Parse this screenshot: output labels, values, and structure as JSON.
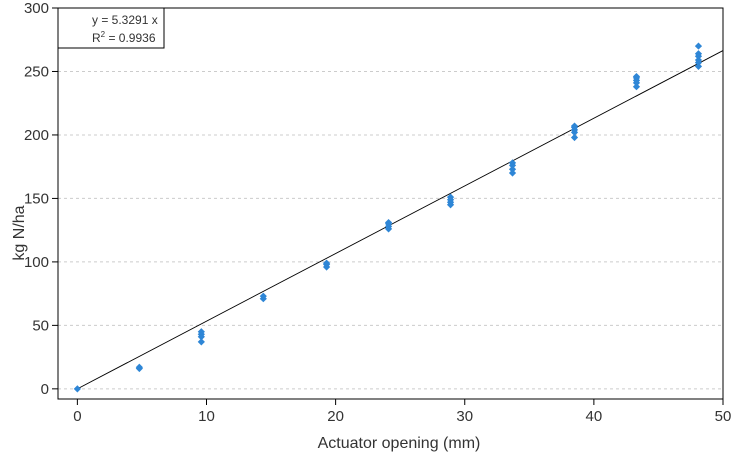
{
  "chart_data": {
    "type": "scatter",
    "title": "",
    "xlabel": "Actuator opening (mm)",
    "ylabel": "kg N/ha",
    "xlim": [
      -1.5,
      50
    ],
    "ylim": [
      -8,
      300
    ],
    "xticks": [
      0,
      10,
      20,
      30,
      40,
      50
    ],
    "yticks": [
      0,
      50,
      100,
      150,
      200,
      250,
      300
    ],
    "grid": "horizontal-dashed",
    "legend": "none",
    "colors": {
      "points": "#2e86d6",
      "trendline": "#000000",
      "grid": "#cccccc",
      "axes": "#000000"
    },
    "series": [
      {
        "x": [
          0,
          4.8,
          4.8,
          9.6,
          9.6,
          9.6,
          9.6,
          14.4,
          14.4,
          19.3,
          19.3,
          19.3,
          24.1,
          24.1,
          24.1,
          24.1,
          28.9,
          28.9,
          28.9,
          28.9,
          33.7,
          33.7,
          33.7,
          33.7,
          38.5,
          38.5,
          38.5,
          38.5,
          38.5,
          43.3,
          43.3,
          43.3,
          43.3,
          43.3,
          48.1,
          48.1,
          48.1,
          48.1,
          48.1,
          48.1
        ],
        "y": [
          0,
          16,
          17,
          37,
          41,
          43,
          45,
          71,
          73,
          96,
          98,
          99,
          126,
          128,
          130,
          131,
          145,
          147,
          149,
          151,
          170,
          173,
          176,
          178,
          198,
          202,
          204,
          206,
          207,
          238,
          241,
          243,
          245,
          246,
          254,
          257,
          259,
          262,
          264,
          270
        ]
      }
    ],
    "trendline": {
      "slope": 5.3291,
      "intercept": 0,
      "x_range": [
        0,
        50
      ]
    },
    "annotation": {
      "equation": "y = 5.3291 x",
      "r2_symbol": "R",
      "r2_exponent": "2",
      "r2_value": " = 0.9936"
    }
  }
}
